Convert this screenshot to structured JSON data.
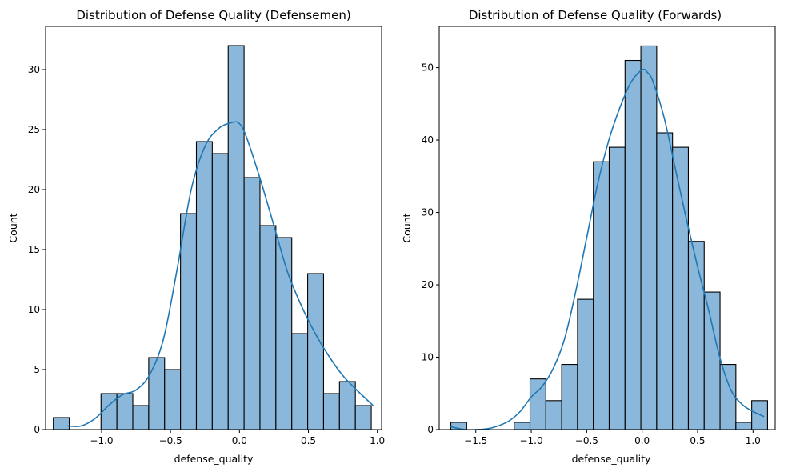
{
  "chart_data": [
    {
      "type": "bar",
      "subtype": "histogram-with-kde",
      "title": "Distribution of Defense Quality (Defensemen)",
      "xlabel": "defense_quality",
      "ylabel": "Count",
      "xlim": [
        -1.406,
        1.031
      ],
      "ylim": [
        0,
        33.6
      ],
      "xticks": [
        -1.0,
        -0.5,
        0.0,
        0.5,
        1.0
      ],
      "xtick_labels": [
        "−1.0",
        "−0.5",
        "0.0",
        "0.5",
        "1.0"
      ],
      "yticks": [
        0,
        5,
        10,
        15,
        20,
        25,
        30
      ],
      "yticks_labels": [
        "0",
        "5",
        "10",
        "15",
        "20",
        "25",
        "30"
      ],
      "bin_start": -1.35,
      "bin_width": 0.1153,
      "counts": [
        1,
        0,
        0,
        3,
        3,
        2,
        6,
        5,
        18,
        24,
        23,
        32,
        21,
        17,
        16,
        8,
        13,
        3,
        4,
        2
      ],
      "bar_color": "#8bb8da",
      "edge_color": "#000000",
      "kde_color": "#1f77b4",
      "kde": {
        "x": [
          -1.25,
          -1.15,
          -1.05,
          -0.95,
          -0.85,
          -0.75,
          -0.65,
          -0.55,
          -0.45,
          -0.35,
          -0.25,
          -0.15,
          -0.05,
          0.0,
          0.05,
          0.15,
          0.25,
          0.35,
          0.45,
          0.55,
          0.65,
          0.75,
          0.85,
          0.97
        ],
        "y": [
          0.3,
          0.3,
          0.9,
          2.0,
          2.9,
          3.3,
          4.6,
          7.6,
          13.5,
          20.0,
          23.6,
          25.1,
          25.6,
          25.5,
          24.4,
          20.9,
          17.0,
          13.1,
          10.3,
          8.0,
          6.1,
          4.5,
          3.3,
          2.0
        ]
      },
      "grid": false
    },
    {
      "type": "bar",
      "subtype": "histogram-with-kde",
      "title": "Distribution of Defense Quality (Forwards)",
      "xlabel": "defense_quality",
      "ylabel": "Count",
      "xlim": [
        -1.83,
        1.2
      ],
      "ylim": [
        0,
        55.7
      ],
      "xticks": [
        -1.5,
        -1.0,
        -0.5,
        0.0,
        0.5,
        1.0
      ],
      "xtick_labels": [
        "−1.5",
        "−1.0",
        "−0.5",
        "0.0",
        "0.5",
        "1.0"
      ],
      "yticks": [
        0,
        10,
        20,
        30,
        40,
        50
      ],
      "yticks_labels": [
        "0",
        "10",
        "20",
        "30",
        "40",
        "50"
      ],
      "bin_start": -1.725,
      "bin_width": 0.1428,
      "counts": [
        1,
        0,
        0,
        0,
        1,
        7,
        4,
        9,
        18,
        37,
        39,
        51,
        53,
        41,
        39,
        26,
        19,
        9,
        1,
        4
      ],
      "bar_color": "#8bb8da",
      "edge_color": "#000000",
      "kde_color": "#1f77b4",
      "kde": {
        "x": [
          -1.73,
          -1.6,
          -1.5,
          -1.4,
          -1.3,
          -1.2,
          -1.1,
          -1.0,
          -0.9,
          -0.8,
          -0.7,
          -0.6,
          -0.5,
          -0.4,
          -0.3,
          -0.2,
          -0.1,
          0.0,
          0.05,
          0.1,
          0.2,
          0.3,
          0.4,
          0.5,
          0.6,
          0.7,
          0.8,
          0.9,
          1.0,
          1.1
        ],
        "y": [
          0.4,
          0.0,
          0.0,
          0.1,
          0.5,
          1.2,
          2.5,
          4.5,
          6.0,
          8.5,
          12.5,
          19.0,
          26.5,
          34.0,
          40.0,
          44.5,
          48.0,
          49.7,
          49.3,
          48.0,
          43.0,
          36.0,
          29.0,
          22.5,
          16.5,
          10.0,
          5.5,
          3.5,
          2.5,
          1.8
        ]
      },
      "grid": false
    }
  ]
}
